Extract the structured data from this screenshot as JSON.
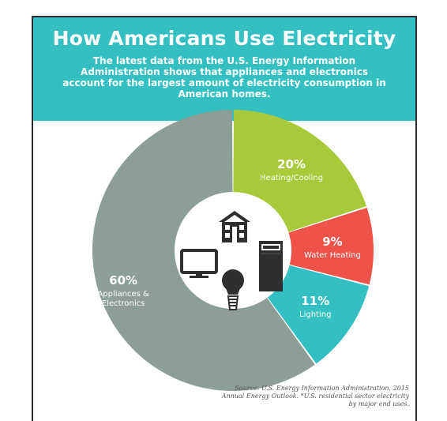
{
  "header": {
    "title": "How Americans Use Electricity",
    "subtitle": "The latest data from the U.S. Energy Information Administration shows that appliances and electronics account for the largest amount of electricity consumption in American homes."
  },
  "chart_data": {
    "type": "pie",
    "variant": "donut",
    "slices": [
      {
        "label": "Heating/Cooling",
        "value": 20,
        "value_label": "20%",
        "color": "#a8c93a"
      },
      {
        "label": "Water Heating",
        "value": 9,
        "value_label": "9%",
        "color": "#ef5249"
      },
      {
        "label": "Lighting",
        "value": 11,
        "value_label": "11%",
        "color": "#34bfc3"
      },
      {
        "label": "Appliances & Electronics",
        "value": 60,
        "value_label": "60%",
        "color": "#8c9e96"
      }
    ]
  },
  "center_icons": [
    "house-icon",
    "water-heater-icon",
    "light-bulb-icon",
    "tv-monitor-icon"
  ],
  "footer": {
    "source": "Source: U.S. Energy Information Administration, 2015 Annual Energy Outlook. *U.S. residential sector electricity by major end uses."
  }
}
